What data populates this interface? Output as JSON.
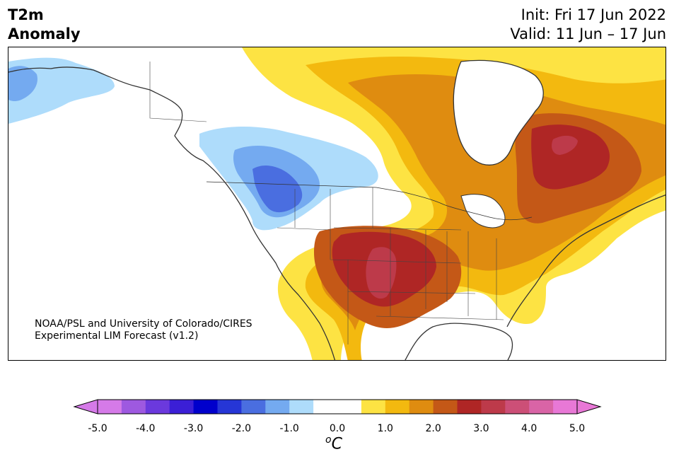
{
  "header": {
    "title_line1": "T2m",
    "title_line2": "Anomaly",
    "init": "Init: Fri 17 Jun 2022",
    "valid": "Valid: 11 Jun – 17 Jun"
  },
  "credit": {
    "line1": "NOAA/PSL and University of Colorado/CIRES",
    "line2": "Experimental LIM Forecast (v1.2)"
  },
  "colorbar": {
    "colors": [
      "#d57ae8",
      "#9e59e0",
      "#6b39dd",
      "#3b1fd6",
      "#0000cc",
      "#2636d6",
      "#4a6ee0",
      "#74aaf0",
      "#aedcfb",
      "#ffffff",
      "#ffffff",
      "#fde343",
      "#f3b90f",
      "#df8c10",
      "#c45817",
      "#af2625",
      "#bd3a4a",
      "#cc4f77",
      "#d964a6",
      "#e878d6"
    ],
    "extend_min_color": "#d57ae8",
    "extend_max_color": "#e878d6",
    "tick_labels": [
      "-5.0",
      "-4.0",
      "-3.0",
      "-2.0",
      "-1.0",
      "0.0",
      "1.0",
      "2.0",
      "3.0",
      "4.0",
      "5.0"
    ],
    "unit_symbol": "o",
    "unit_letter": "C"
  }
}
